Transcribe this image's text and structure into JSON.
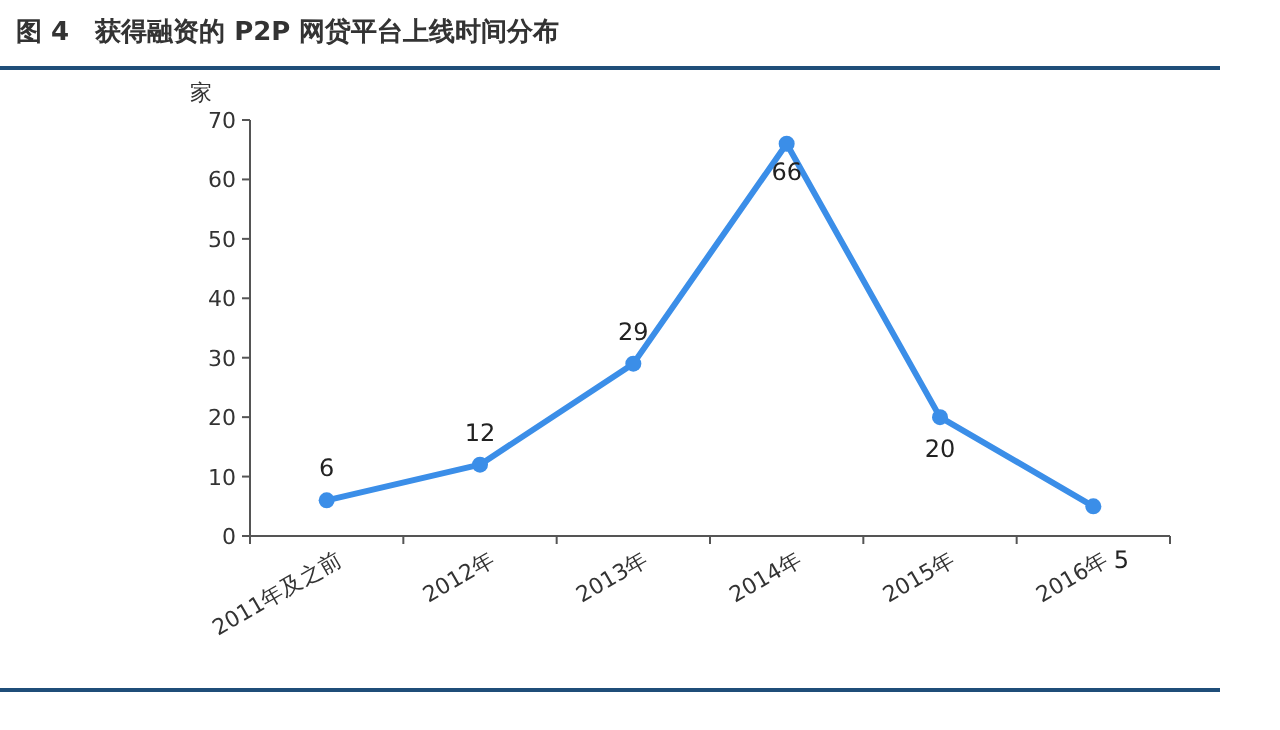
{
  "chart_data": {
    "type": "line",
    "title": "图 4　获得融资的 P2P 网贷平台上线时间分布",
    "ylabel": "家",
    "categories": [
      "2011年及之前",
      "2012年",
      "2013年",
      "2014年",
      "2015年",
      "2016年"
    ],
    "series": [
      {
        "color": "#3b8ee8",
        "values": [
          6,
          12,
          29,
          66,
          20,
          5
        ]
      }
    ],
    "ylim": [
      0,
      70
    ],
    "yticks": [
      0,
      10,
      20,
      30,
      40,
      50,
      60,
      70
    ],
    "data_labels": true,
    "marker": "circle",
    "grid": false
  }
}
